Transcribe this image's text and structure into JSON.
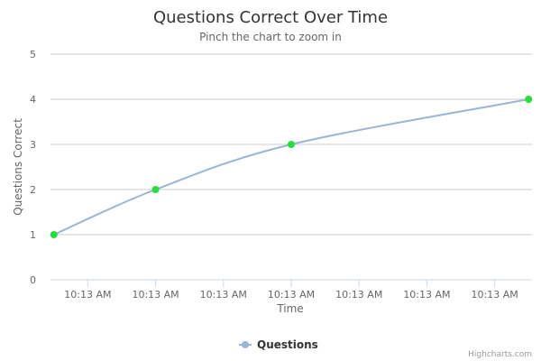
{
  "chart_data": {
    "type": "line",
    "title": "Questions Correct Over Time",
    "subtitle": "Pinch the chart to zoom in",
    "xlabel": "Time",
    "ylabel": "Questions Correct",
    "ylim": [
      0,
      5
    ],
    "y_ticks": [
      0,
      1,
      2,
      3,
      4,
      5
    ],
    "x_tick_labels": [
      "10:13 AM",
      "10:13 AM",
      "10:13 AM",
      "10:13 AM",
      "10:13 AM",
      "10:13 AM",
      "10:13 AM"
    ],
    "grid": true,
    "legend_position": "bottom-center",
    "series": [
      {
        "name": "Questions",
        "line_color": "#9ab5d6",
        "marker_color": "#22e03a",
        "points": [
          {
            "x": 0.0,
            "y": 1
          },
          {
            "x": 3.0,
            "y": 2
          },
          {
            "x": 7.0,
            "y": 3
          },
          {
            "x": 14.0,
            "y": 4
          }
        ]
      }
    ],
    "xlim": [
      -0.1,
      14.1
    ],
    "x_tick_positions": [
      1.0,
      3.0,
      5.0,
      7.0,
      9.0,
      11.0,
      13.0
    ]
  },
  "credits": "Highcharts.com"
}
